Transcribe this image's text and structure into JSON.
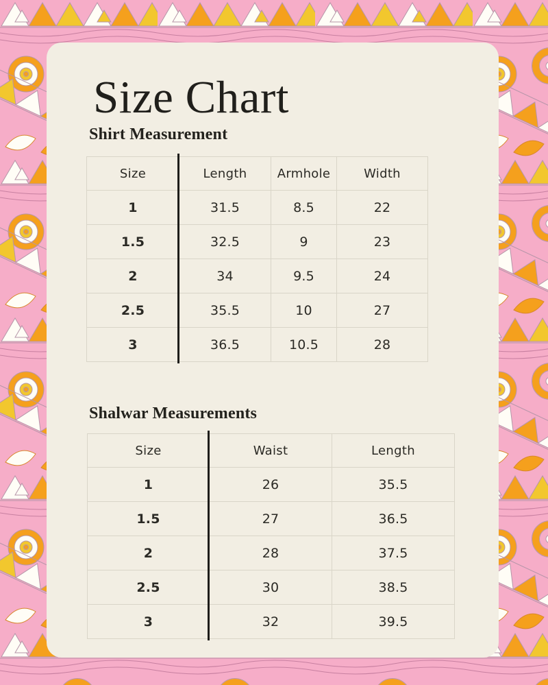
{
  "poster": {
    "title": "Size Chart"
  },
  "sections": [
    {
      "heading": "Shirt Measurement",
      "table": {
        "columns": [
          "Size",
          "Length",
          "Armhole",
          "Width"
        ],
        "rows": [
          [
            "1",
            "31.5",
            "8.5",
            "22"
          ],
          [
            "1.5",
            "32.5",
            "9",
            "23"
          ],
          [
            "2",
            "34",
            "9.5",
            "24"
          ],
          [
            "2.5",
            "35.5",
            "10",
            "27"
          ],
          [
            "3",
            "36.5",
            "10.5",
            "28"
          ]
        ]
      }
    },
    {
      "heading": "Shalwar Measurements",
      "table": {
        "columns": [
          "Size",
          "Waist",
          "Length"
        ],
        "rows": [
          [
            "1",
            "26",
            "35.5"
          ],
          [
            "1.5",
            "27",
            "36.5"
          ],
          [
            "2",
            "28",
            "37.5"
          ],
          [
            "2.5",
            "30",
            "38.5"
          ],
          [
            "3",
            "32",
            "39.5"
          ]
        ]
      }
    }
  ],
  "colors": {
    "pattern_pink": "#f6adc8",
    "pattern_orange": "#f5a01d",
    "pattern_yellow": "#f2c72e",
    "pattern_white": "#fffdf6",
    "panel_cream": "#f2eee3",
    "grid_line": "#d9d5c8",
    "divider_black": "#1e1d1a",
    "text": "#2b2a25"
  }
}
